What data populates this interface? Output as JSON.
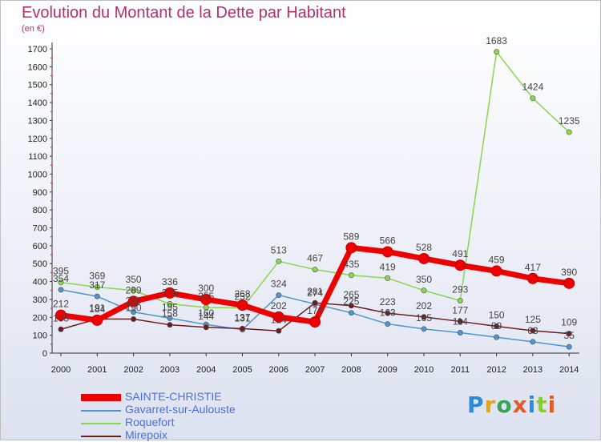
{
  "title": "Evolution du Montant de la Dette par Habitant",
  "subtitle": "(en €)",
  "logo": "Proxiti",
  "chart_data": {
    "type": "line",
    "x": [
      2000,
      2001,
      2002,
      2003,
      2004,
      2005,
      2006,
      2007,
      2008,
      2009,
      2010,
      2011,
      2012,
      2013,
      2014
    ],
    "ylim": [
      0,
      1700
    ],
    "yticks": [
      0,
      100,
      200,
      300,
      400,
      500,
      600,
      700,
      800,
      900,
      1000,
      1100,
      1200,
      1300,
      1400,
      1500,
      1600,
      1700
    ],
    "grid": false,
    "legend": "bottom-left",
    "series": [
      {
        "name": "SAINTE-CHRISTIE",
        "color": "#ee0000",
        "values": [
          212,
          184,
          289,
          336,
          300,
          268,
          202,
          174,
          589,
          566,
          528,
          491,
          459,
          417,
          390
        ]
      },
      {
        "name": "Gavarret-sur-Aulouste",
        "color": "#4f94cd",
        "values": [
          354,
          317,
          230,
          195,
          160,
          131,
          324,
          274,
          225,
          163,
          135,
          114,
          89,
          63,
          35
        ]
      },
      {
        "name": "Roquefort",
        "color": "#8ad64e",
        "values": [
          395,
          369,
          350,
          275,
          255,
          252,
          513,
          467,
          435,
          419,
          350,
          293,
          1683,
          1424,
          1235
        ]
      },
      {
        "name": "Mirepoix",
        "color": "#6b1c1c",
        "values": [
          133,
          191,
          190,
          158,
          144,
          137,
          124,
          281,
          265,
          223,
          202,
          177,
          150,
          125,
          109
        ]
      }
    ]
  }
}
